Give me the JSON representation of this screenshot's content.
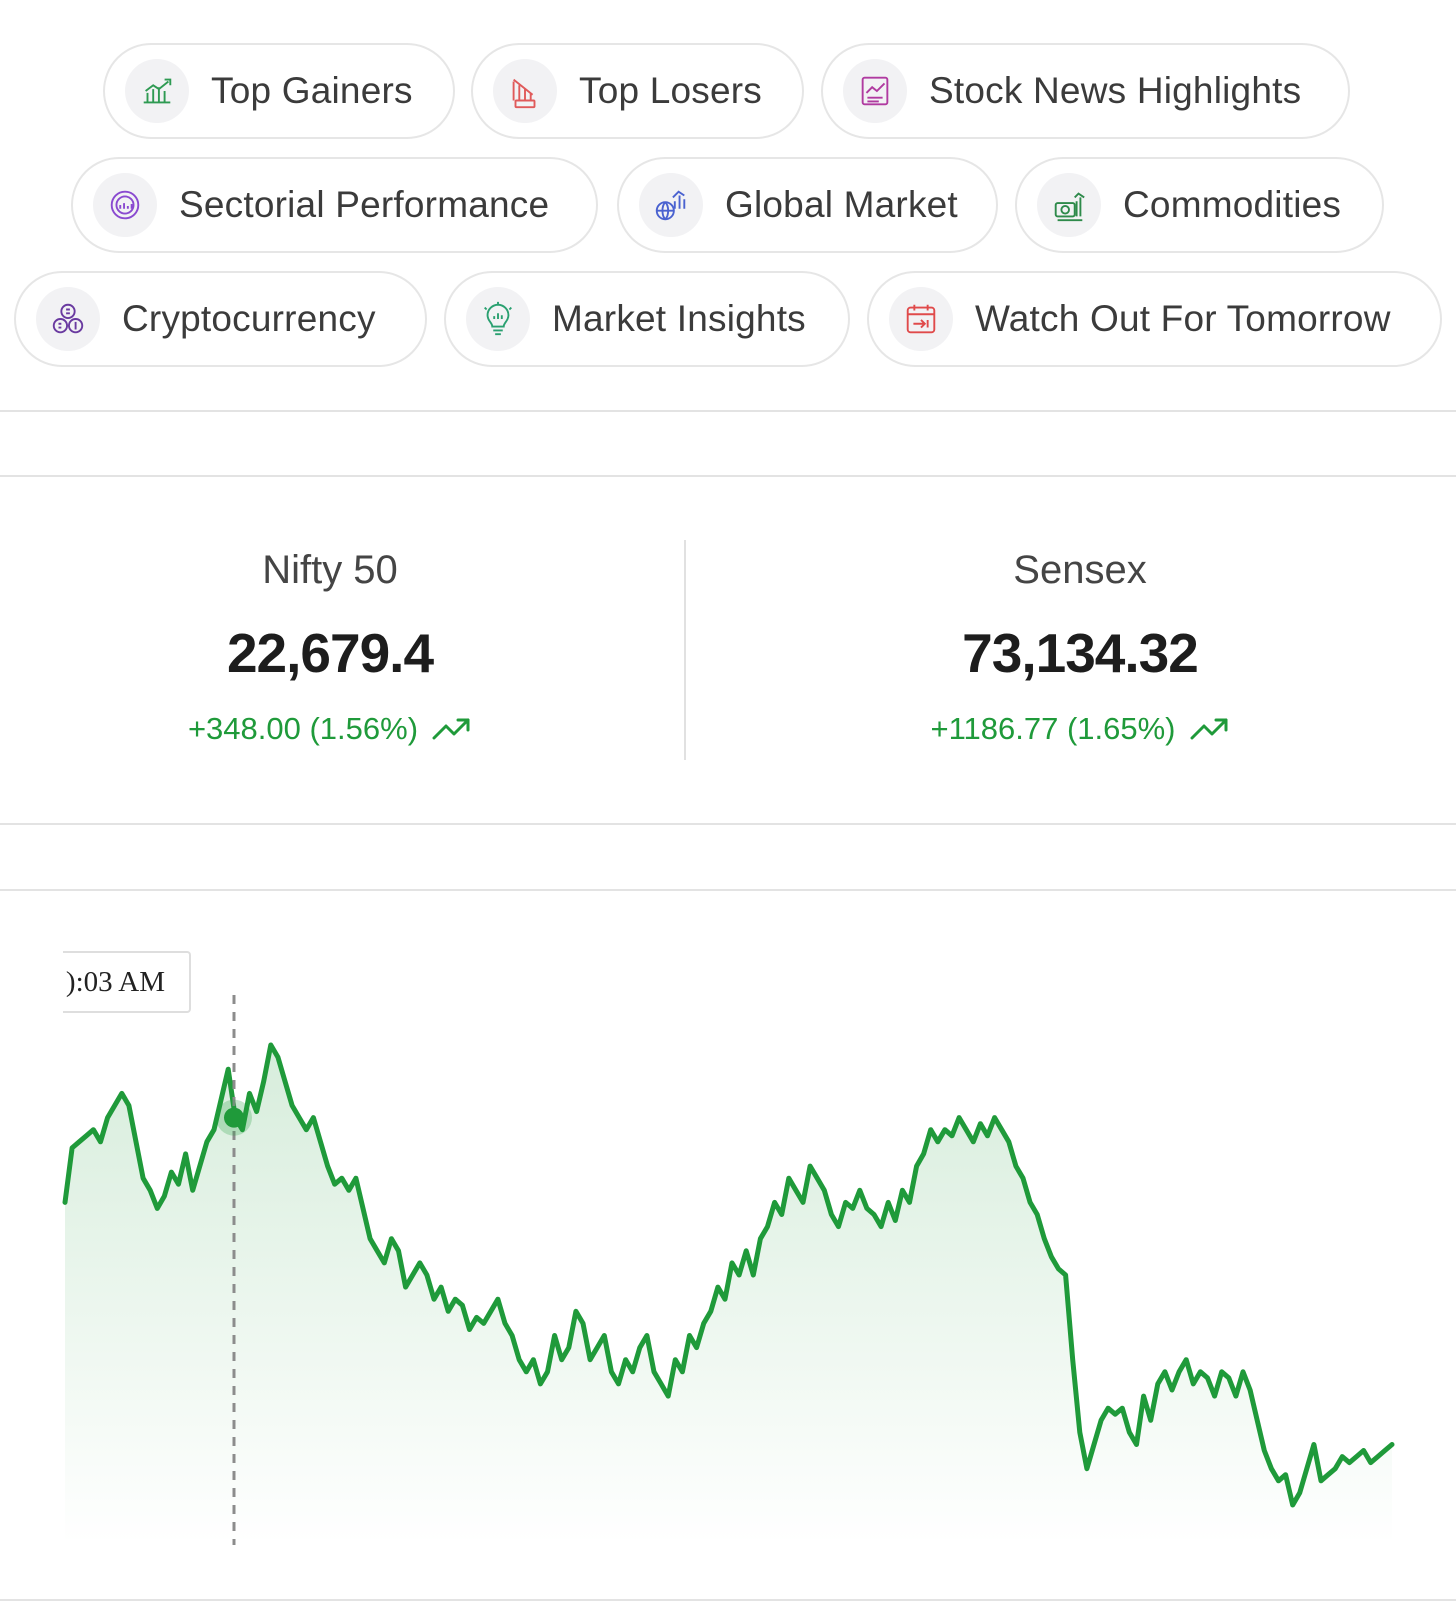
{
  "nav": {
    "row1": [
      {
        "label": "Top Gainers",
        "icon": "gainers-icon",
        "color": "#2e9a52"
      },
      {
        "label": "Top Losers",
        "icon": "losers-icon",
        "color": "#e05a5a"
      },
      {
        "label": "Stock News Highlights",
        "icon": "news-icon",
        "color": "#b03aa0"
      }
    ],
    "row2": [
      {
        "label": "Sectorial Performance",
        "icon": "sector-icon",
        "color": "#8a4ad0"
      },
      {
        "label": "Global Market",
        "icon": "globe-chart-icon",
        "color": "#4a62d0"
      },
      {
        "label": "Commodities",
        "icon": "commodities-icon",
        "color": "#2e8a4a"
      }
    ],
    "row3": [
      {
        "label": "Cryptocurrency",
        "icon": "crypto-icon",
        "color": "#6a3aa0"
      },
      {
        "label": "Market Insights",
        "icon": "bulb-icon",
        "color": "#2aa070"
      },
      {
        "label": "Watch Out For Tomorrow",
        "icon": "calendar-icon",
        "color": "#e04a4a"
      }
    ]
  },
  "indices": {
    "nifty": {
      "name": "Nifty 50",
      "value": "22,679.4",
      "change": "+348.00 (1.56%)"
    },
    "sensex": {
      "name": "Sensex",
      "value": "73,134.32",
      "change": "+1186.77 (1.65%)"
    }
  },
  "colors": {
    "positive": "#1f9a3a",
    "line": "#1f9a3a"
  },
  "chart_data": {
    "type": "area",
    "tooltip_label": "):03 AM",
    "grid": false,
    "series": [
      {
        "values": [
          56,
          65,
          66,
          67,
          68,
          66,
          70,
          72,
          74,
          72,
          66,
          60,
          58,
          55,
          57,
          61,
          59,
          64,
          58,
          62,
          66,
          68,
          73,
          78,
          70,
          68,
          74,
          71,
          76,
          82,
          80,
          76,
          72,
          70,
          68,
          70,
          66,
          62,
          59,
          60,
          58,
          60,
          55,
          50,
          48,
          46,
          50,
          48,
          42,
          44,
          46,
          44,
          40,
          42,
          38,
          40,
          39,
          35,
          37,
          36,
          38,
          40,
          36,
          34,
          30,
          28,
          30,
          26,
          28,
          34,
          30,
          32,
          38,
          36,
          30,
          32,
          34,
          28,
          26,
          30,
          28,
          32,
          34,
          28,
          26,
          24,
          30,
          28,
          34,
          32,
          36,
          38,
          42,
          40,
          46,
          44,
          48,
          44,
          50,
          52,
          56,
          54,
          60,
          58,
          56,
          62,
          60,
          58,
          54,
          52,
          56,
          55,
          58,
          55,
          54,
          52,
          56,
          53,
          58,
          56,
          62,
          64,
          68,
          66,
          68,
          67,
          70,
          68,
          66,
          69,
          67,
          70,
          68,
          66,
          62,
          60,
          56,
          54,
          50,
          47,
          45,
          44,
          30,
          18,
          12,
          16,
          20,
          22,
          21,
          22,
          18,
          16,
          24,
          20,
          26,
          28,
          25,
          28,
          30,
          26,
          28,
          27,
          24,
          28,
          27,
          24,
          28,
          25,
          20,
          15,
          12,
          10,
          11,
          6,
          8,
          12,
          16,
          10,
          11,
          12,
          14,
          13,
          14,
          15,
          13,
          14,
          15,
          16
        ]
      }
    ]
  }
}
